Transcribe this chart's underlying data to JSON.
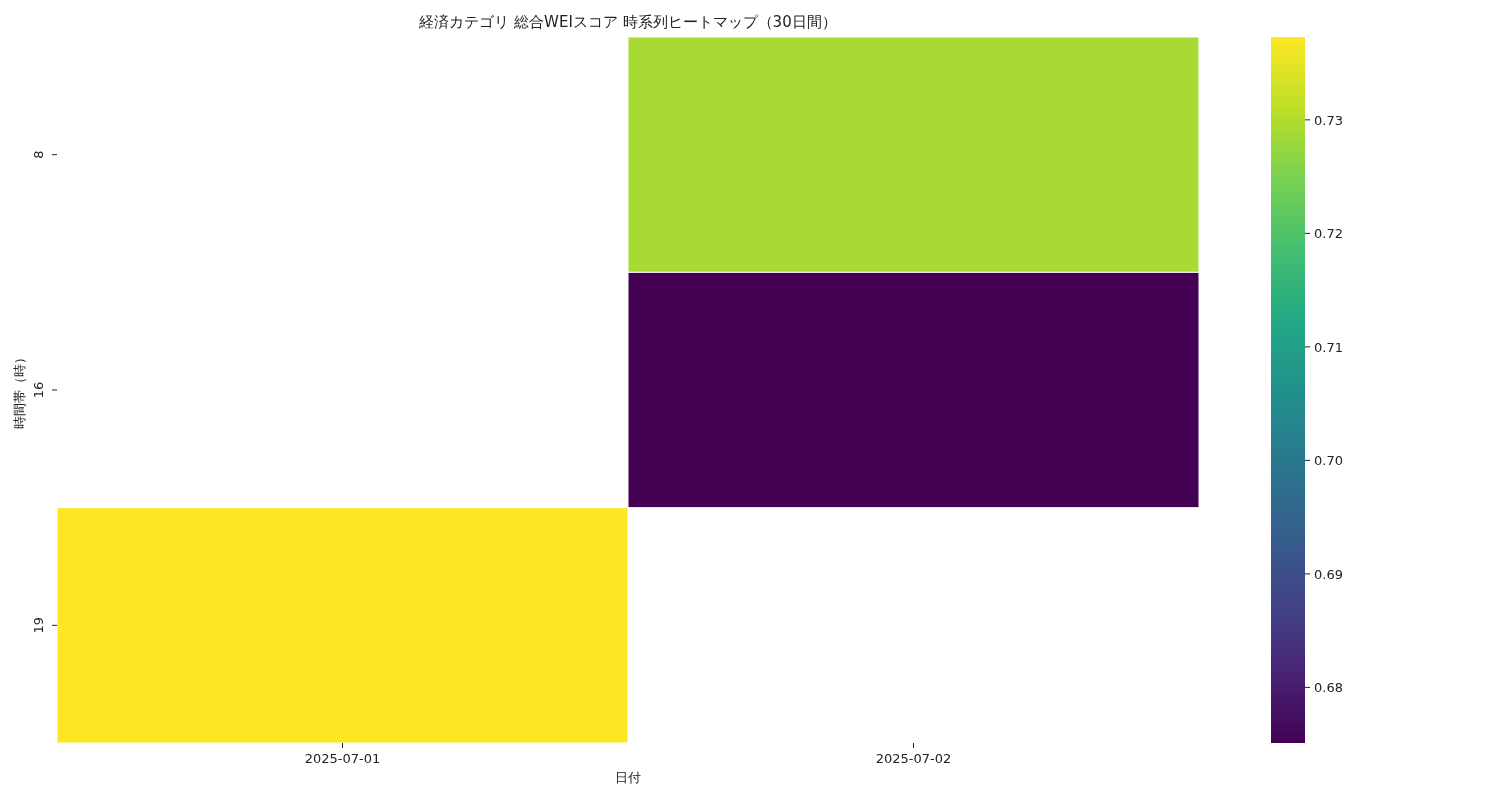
{
  "chart_data": {
    "type": "heatmap",
    "title": "経済カテゴリ 総合WEIスコア 時系列ヒートマップ（30日間）",
    "xlabel": "日付",
    "ylabel": "時間帯（時）",
    "categories": [
      "2025-07-01",
      "2025-07-02"
    ],
    "y_categories": [
      "8",
      "16",
      "19"
    ],
    "cells": [
      [
        null,
        0.729
      ],
      [
        null,
        0.6751
      ],
      [
        0.7373,
        null
      ]
    ],
    "clim": [
      0.6751,
      0.7373
    ],
    "cticks": [
      0.68,
      0.69,
      {
        "value": 0.7,
        "label": "0.70"
      },
      0.71,
      0.72,
      0.73
    ]
  }
}
